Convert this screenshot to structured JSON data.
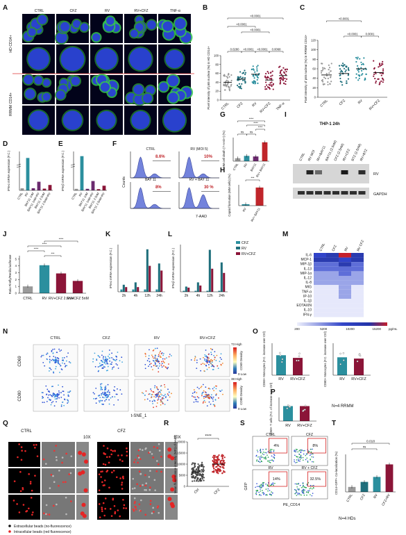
{
  "panel_letters": [
    "A",
    "B",
    "C",
    "D",
    "E",
    "F",
    "G",
    "H",
    "I",
    "J",
    "K",
    "L",
    "M",
    "N",
    "O",
    "P",
    "Q",
    "R",
    "S",
    "T"
  ],
  "colors": {
    "teal": "#2b8f9e",
    "darkteal": "#1f6f7c",
    "maroon": "#8b1538",
    "purple": "#6b2a6e",
    "grey": "#9a9a9a",
    "red": "#c0252a",
    "blue": "#1f3fa8",
    "navy": "#1a237e"
  },
  "A": {
    "col_labels": [
      "CTRL",
      "CFZ",
      "RV",
      "RV+CFZ",
      "TNF-α"
    ],
    "row_labels": [
      "HD CD14+",
      "RRMM CD14+"
    ]
  },
  "chart_data": [
    {
      "panel": "B",
      "type": "scatter",
      "ylabel": "Pixel intensity of p65 nuclear (%) in HD CD14+",
      "categories": [
        "CTRL",
        "CFZ",
        "RV",
        "RV+CFZ",
        "TNF-α"
      ],
      "ylim": [
        0,
        100
      ],
      "yticks": [
        0,
        20,
        40,
        60,
        80,
        100
      ],
      "means": [
        40,
        47,
        58,
        45,
        55
      ],
      "pvalues": [
        {
          "from": 0,
          "to": 1,
          "text": "0.0280"
        },
        {
          "from": 1,
          "to": 2,
          "text": "<0.0001"
        },
        {
          "from": 2,
          "to": 3,
          "text": "<0.0001"
        },
        {
          "from": 3,
          "to": 4,
          "text": "0.0068"
        },
        {
          "from": 1,
          "to": 3,
          "text": "<0.0001"
        },
        {
          "from": 0,
          "to": 2,
          "text": "<0.0001"
        },
        {
          "from": 0,
          "to": 4,
          "text": "<0.0001"
        }
      ]
    },
    {
      "panel": "C",
      "type": "scatter",
      "ylabel": "Pixel intensity of p65 nuclear (%) in RRMM CD14+",
      "categories": [
        "CTRL",
        "CFZ",
        "RV",
        "RV+CFZ"
      ],
      "ylim": [
        0,
        120
      ],
      "yticks": [
        0,
        20,
        40,
        60,
        80,
        100,
        120
      ],
      "means": [
        47,
        50,
        60,
        52
      ],
      "pvalues": [
        {
          "from": 1,
          "to": 2,
          "text": "<0.0001"
        },
        {
          "from": 2,
          "to": 3,
          "text": "0.0001"
        },
        {
          "from": 0,
          "to": 2,
          "text": "<0.0001"
        }
      ]
    },
    {
      "panel": "D",
      "type": "bar",
      "ylabel": "IFN-α mRNA expression (F.C.)",
      "categories": [
        "CTRL",
        "RV",
        "BAY11 1nM",
        "BAY11 1nM+RV",
        "BAY11 2.5nM",
        "BAY11 2.5nM+RV"
      ],
      "values": [
        1,
        15,
        1,
        4,
        0.8,
        2.5
      ]
    },
    {
      "panel": "E",
      "type": "bar",
      "ylabel": "IFN-β mRNA expression (F.C.)",
      "categories": [
        "CTRL",
        "RV",
        "BAY11 1nM",
        "BAY11 1nM+RV",
        "BAY11 2.5nM",
        "BAY11 2.5nM+RV"
      ],
      "values": [
        1,
        22,
        1,
        6,
        0.8,
        3
      ]
    },
    {
      "panel": "G",
      "type": "bar",
      "ylabel": "MM cell death (7-AAD+) (%)",
      "categories": [
        "CTRL",
        "RV",
        "BAY11",
        "RV+ BAY11"
      ],
      "values": [
        5,
        9,
        8,
        32
      ],
      "annotations": [
        "ns",
        "ns",
        "****",
        "****",
        "****"
      ]
    },
    {
      "panel": "H",
      "type": "bar",
      "ylabel": "Capsid formation (MM cells) (%)",
      "categories": [
        "RV",
        "RV+ BAY11"
      ],
      "values": [
        8,
        100
      ],
      "annotations": [
        "***"
      ]
    },
    {
      "panel": "J",
      "type": "bar",
      "ylabel": "Ratio Firefly/Renilla luciferase",
      "categories": [
        "CTRL",
        "RV",
        "RV+CFZ 2.5nM",
        "RV+CFZ 5nM"
      ],
      "values": [
        1,
        4.1,
        2.9,
        1.8
      ],
      "annotations": [
        "****",
        "****",
        "***",
        "****"
      ]
    },
    {
      "panel": "K",
      "type": "bar",
      "ylabel": "IFN-α mRNA expression (F.C.)",
      "categories": [
        "2h",
        "4h",
        "12h",
        "24h"
      ],
      "series": [
        {
          "name": "CFZ",
          "values": [
            1,
            1,
            1,
            1
          ]
        },
        {
          "name": "RV",
          "values": [
            3,
            4,
            18,
            12
          ]
        },
        {
          "name": "RV+CFZ",
          "values": [
            2,
            2,
            11,
            9
          ]
        }
      ]
    },
    {
      "panel": "L",
      "type": "bar",
      "ylabel": "IFN-β mRNA expression (F.C.)",
      "categories": [
        "2h",
        "4h",
        "12h",
        "24h"
      ],
      "series": [
        {
          "name": "CFZ",
          "values": [
            1,
            1,
            1,
            1
          ]
        },
        {
          "name": "RV",
          "values": [
            5,
            9,
            40,
            28
          ]
        },
        {
          "name": "RV+CFZ",
          "values": [
            4,
            6,
            22,
            18
          ]
        }
      ]
    },
    {
      "panel": "M",
      "type": "heatmap",
      "row_labels": [
        "IL-6",
        "MCP-1",
        "MIP-1β",
        "IL-13",
        "MIP-1α",
        "IL-12",
        "IL-8",
        "MIG",
        "TNF-α",
        "IP-10",
        "IL-1β",
        "EOTAXIN",
        "IL-10",
        "IFN-γ"
      ],
      "col_labels": [
        "CTRL",
        "CFZ",
        "RV",
        "RV CFZ"
      ],
      "scale_ticks": [
        "200",
        "5200",
        "10200",
        "15200"
      ],
      "scale_unit": "pg/mL"
    },
    {
      "panel": "O",
      "type": "bar",
      "charts": [
        {
          "ylabel": "CD69+ Monocytes (F.C. increase over Ctrl)",
          "categories": [
            "RV",
            "RV+CFZ"
          ],
          "values": [
            7.5,
            6.5
          ],
          "ylim": [
            0,
            12
          ]
        },
        {
          "ylabel": "CD80+ Monocytes (F.C. increase over Ctrl)",
          "categories": [
            "RV",
            "RV+CFZ"
          ],
          "values": [
            2.8,
            2.6
          ],
          "ylim": [
            0,
            5
          ]
        }
      ]
    },
    {
      "panel": "P",
      "type": "bar",
      "ylabel": "CD69+ T cells (F.C. of increase over Ctrl)",
      "categories": [
        "RV",
        "RV+CFZ"
      ],
      "values": [
        1.9,
        1.9
      ]
    },
    {
      "panel": "R",
      "type": "scatter",
      "ylabel": "Mean fluorescence intensity (MFI) of beads",
      "categories": [
        "Ctrl",
        "CFZ"
      ],
      "ylim": [
        0,
        20000
      ],
      "yticks": [
        "0",
        "5000",
        "10000",
        "15000",
        "20000"
      ],
      "means": [
        6500,
        10000
      ],
      "annotations": [
        "****"
      ]
    },
    {
      "panel": "T",
      "type": "bar",
      "ylabel": "CD14+GFP+ Co-localization (%)",
      "categories": [
        "CTRL",
        "CFZ",
        "RV",
        "CFZ+RV"
      ],
      "values": [
        4,
        8,
        12,
        22
      ],
      "annotations": [
        "ns",
        "0.018"
      ]
    }
  ],
  "F": {
    "xlabel": "7-AAD",
    "ylabel": "Counts",
    "plots": [
      {
        "title": "CTRL",
        "pct": "8.6%"
      },
      {
        "title": "RV (MOI 5)",
        "pct": "10%"
      },
      {
        "title": "BAY 11",
        "pct": "8%"
      },
      {
        "title": "RV + BAY 11",
        "pct": "30 %"
      }
    ]
  },
  "I": {
    "title": "THP-1 24h",
    "lanes": [
      "CTRL",
      "RV MOI",
      "RV+BAY11",
      "BAY11 (2.5nM)",
      "CFZ (2.5nM)",
      "RV+CFZ",
      "BTZ (2.5nM)",
      "RV+BTZ"
    ],
    "bands": [
      "RV",
      "GAPDH"
    ]
  },
  "K_legend": [
    "CFZ",
    "RV",
    "RV+CFZ"
  ],
  "N": {
    "titles": [
      "CTRL",
      "CFZ",
      "RV",
      "RV+CFZ"
    ],
    "rows": [
      "CD69",
      "CD80"
    ],
    "xlabel": "t-SNE_1",
    "scale1": {
      "high": "73 High",
      "low": "0 Low",
      "label": "CD69 Density"
    },
    "scale2": {
      "high": "38 High",
      "low": "0 Low",
      "label": "CD80 Density"
    }
  },
  "P_note": "N=4 RRMM",
  "Q": {
    "titles": [
      "CTRL",
      "CFZ"
    ],
    "zoom": "10X",
    "legend": [
      "Extracellular beads (no-fluorescence)",
      "Intracellular beads (red fluorescence)"
    ]
  },
  "S": {
    "plots": [
      {
        "title": "CTRL",
        "pct": "4%"
      },
      {
        "title": "CFZ",
        "pct": "8%"
      },
      {
        "title": "RV",
        "pct": "14%"
      },
      {
        "title": "RV + CFZ",
        "pct": "32.5%"
      }
    ],
    "ylabel": "GFP",
    "xlabel": "PE_CD14"
  },
  "T_note": "N=4 HDs"
}
